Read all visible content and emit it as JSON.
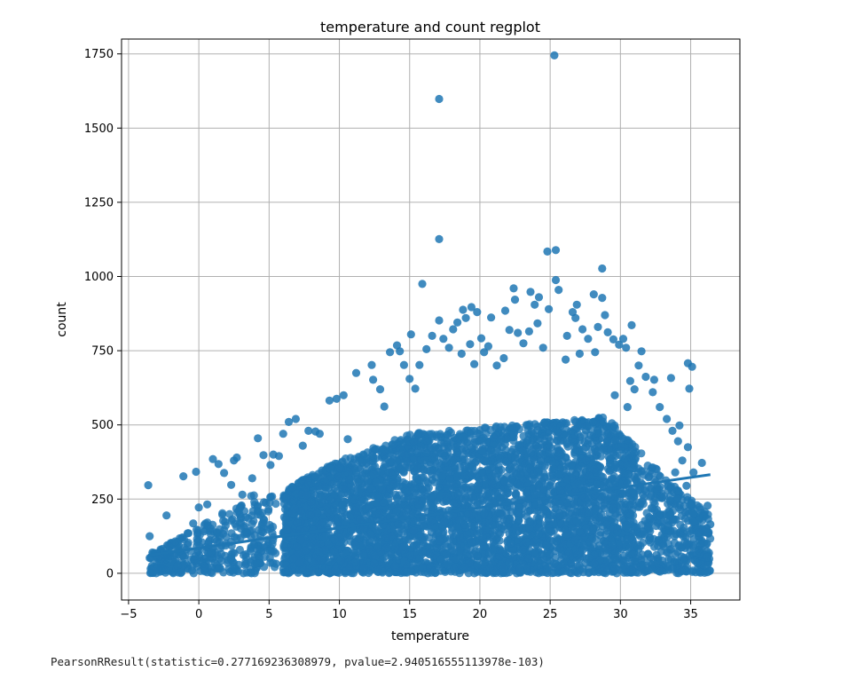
{
  "chart_data": {
    "type": "scatter",
    "title": "temperature and count regplot",
    "xlabel": "temperature",
    "ylabel": "count",
    "xlim": [
      -5.5,
      38.5
    ],
    "ylim": [
      -90,
      1800
    ],
    "xticks": [
      -5,
      0,
      5,
      10,
      15,
      20,
      25,
      30,
      35
    ],
    "yticks": [
      0,
      250,
      500,
      750,
      1000,
      1250,
      1500,
      1750
    ],
    "grid": true,
    "point_color": "#1f77b4",
    "points": [
      [
        25.3,
        1745
      ],
      [
        17.1,
        1598
      ],
      [
        17.1,
        1126
      ],
      [
        25.4,
        1089
      ],
      [
        24.8,
        1084
      ],
      [
        28.7,
        1027
      ],
      [
        25.4,
        988
      ],
      [
        15.9,
        975
      ],
      [
        25.6,
        955
      ],
      [
        23.6,
        948
      ],
      [
        22.4,
        960
      ],
      [
        24.2,
        930
      ],
      [
        22.5,
        922
      ],
      [
        19.4,
        897
      ],
      [
        18.8,
        888
      ],
      [
        26.6,
        880
      ],
      [
        28.9,
        870
      ],
      [
        20.8,
        862
      ],
      [
        17.1,
        852
      ],
      [
        18.4,
        845
      ],
      [
        28.4,
        830
      ],
      [
        15.1,
        805
      ],
      [
        30.2,
        790
      ],
      [
        31.5,
        748
      ],
      [
        34.8,
        708
      ],
      [
        35.1,
        696
      ],
      [
        34.9,
        622
      ],
      [
        33.6,
        658
      ],
      [
        32.4,
        652
      ],
      [
        30.7,
        648
      ],
      [
        34.2,
        498
      ],
      [
        34.8,
        425
      ],
      [
        35.8,
        372
      ],
      [
        35.2,
        340
      ],
      [
        34.7,
        295
      ],
      [
        36.2,
        228
      ],
      [
        36.4,
        165
      ],
      [
        35.9,
        192
      ],
      [
        33.2,
        145
      ],
      [
        32.7,
        112
      ],
      [
        31.3,
        82
      ],
      [
        31.6,
        28
      ],
      [
        -3.6,
        297
      ],
      [
        -3.5,
        125
      ],
      [
        -3.3,
        70
      ],
      [
        -2.3,
        195
      ],
      [
        -2.2,
        52
      ],
      [
        -2.7,
        18
      ],
      [
        -1.4,
        75
      ],
      [
        -1.1,
        327
      ],
      [
        -0.8,
        135
      ],
      [
        -0.4,
        168
      ],
      [
        0.0,
        222
      ],
      [
        -0.2,
        342
      ],
      [
        0.6,
        232
      ],
      [
        1.0,
        385
      ],
      [
        1.4,
        368
      ],
      [
        1.8,
        338
      ],
      [
        1.3,
        135
      ],
      [
        2.5,
        380
      ],
      [
        2.7,
        390
      ],
      [
        2.3,
        298
      ],
      [
        3.1,
        265
      ],
      [
        3.8,
        320
      ],
      [
        4.2,
        455
      ],
      [
        4.6,
        398
      ],
      [
        5.1,
        365
      ],
      [
        5.3,
        400
      ],
      [
        5.7,
        395
      ],
      [
        6.0,
        470
      ],
      [
        6.4,
        510
      ],
      [
        6.9,
        520
      ],
      [
        7.4,
        430
      ],
      [
        7.8,
        480
      ],
      [
        8.3,
        478
      ],
      [
        8.6,
        470
      ],
      [
        9.3,
        582
      ],
      [
        9.8,
        588
      ],
      [
        10.3,
        600
      ],
      [
        10.6,
        452
      ],
      [
        11.2,
        675
      ],
      [
        11.7,
        400
      ],
      [
        12.3,
        702
      ],
      [
        12.4,
        652
      ],
      [
        12.9,
        620
      ],
      [
        13.2,
        562
      ],
      [
        13.6,
        745
      ],
      [
        14.1,
        768
      ],
      [
        14.3,
        748
      ],
      [
        14.6,
        702
      ],
      [
        15.0,
        655
      ],
      [
        15.4,
        622
      ],
      [
        15.7,
        702
      ],
      [
        16.2,
        755
      ],
      [
        16.6,
        800
      ],
      [
        17.4,
        790
      ],
      [
        17.8,
        760
      ],
      [
        18.1,
        822
      ],
      [
        18.7,
        740
      ],
      [
        19.3,
        772
      ],
      [
        19.6,
        705
      ],
      [
        20.1,
        792
      ],
      [
        20.3,
        745
      ],
      [
        20.6,
        765
      ],
      [
        21.2,
        700
      ],
      [
        21.7,
        725
      ],
      [
        22.1,
        820
      ],
      [
        22.7,
        810
      ],
      [
        23.1,
        775
      ],
      [
        23.5,
        815
      ],
      [
        24.1,
        842
      ],
      [
        24.5,
        760
      ],
      [
        26.2,
        800
      ],
      [
        26.8,
        860
      ],
      [
        27.3,
        822
      ],
      [
        27.7,
        790
      ],
      [
        28.2,
        745
      ],
      [
        28.7,
        928
      ],
      [
        29.1,
        812
      ],
      [
        29.5,
        788
      ],
      [
        29.9,
        770
      ],
      [
        30.4,
        760
      ],
      [
        30.8,
        836
      ],
      [
        31.3,
        700
      ],
      [
        31.8,
        662
      ],
      [
        32.3,
        610
      ],
      [
        32.8,
        560
      ],
      [
        33.3,
        520
      ],
      [
        33.7,
        480
      ],
      [
        34.1,
        445
      ],
      [
        34.4,
        380
      ],
      [
        33.9,
        340
      ],
      [
        29.6,
        600
      ],
      [
        30.5,
        560
      ],
      [
        31.0,
        620
      ],
      [
        26.1,
        720
      ],
      [
        27.1,
        740
      ],
      [
        19.0,
        860
      ],
      [
        21.8,
        885
      ],
      [
        23.9,
        905
      ],
      [
        24.9,
        890
      ],
      [
        26.9,
        905
      ],
      [
        28.1,
        940
      ],
      [
        19.8,
        880
      ]
    ],
    "regression": {
      "slope": 6.8,
      "intercept": 85,
      "x_range": [
        -3.6,
        36.4
      ]
    },
    "pearson": {
      "statistic": 0.277169236308979,
      "pvalue": 2.940516555113978e-103
    }
  },
  "output_text": "PearsonRResult(statistic=0.277169236308979, pvalue=2.940516555113978e-103)"
}
